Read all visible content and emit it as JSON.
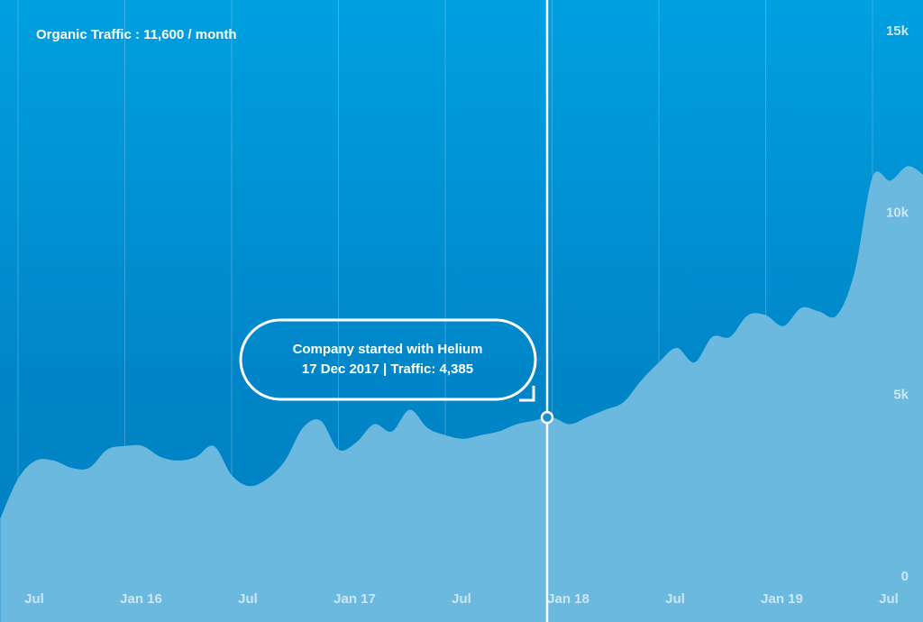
{
  "chart_data": {
    "type": "area",
    "title": "Organic Traffic : 11,600 / month",
    "annotation": [
      "Company started with Helium",
      "17 Dec 2017 | Traffic: 4,385"
    ],
    "categories": [
      null,
      "Jul",
      null,
      null,
      null,
      null,
      null,
      "Jan 16",
      null,
      null,
      null,
      null,
      null,
      "Jul",
      null,
      null,
      null,
      null,
      null,
      "Jan 17",
      null,
      null,
      null,
      null,
      null,
      "Jul",
      null,
      null,
      null,
      null,
      null,
      "Jan 18",
      null,
      null,
      null,
      null,
      null,
      "Jul",
      null,
      null,
      null,
      null,
      null,
      "Jan 19",
      null,
      null,
      null,
      null,
      null,
      "Jul",
      null,
      null,
      null
    ],
    "series": [
      {
        "name": "Organic Traffic",
        "color": "#6cb9e0",
        "values": [
          1600,
          2700,
          3200,
          3200,
          3000,
          3000,
          3500,
          3600,
          3600,
          3300,
          3200,
          3300,
          3600,
          2800,
          2500,
          2700,
          3200,
          4100,
          4300,
          3500,
          3700,
          4200,
          4000,
          4600,
          4100,
          3900,
          3800,
          3900,
          4000,
          4200,
          4300,
          4385,
          4200,
          4400,
          4600,
          4800,
          5400,
          5900,
          6300,
          5900,
          6600,
          6600,
          7200,
          7200,
          6900,
          7400,
          7300,
          7200,
          8400,
          11000,
          10900,
          11300,
          11000
        ]
      }
    ],
    "ylim": [
      0,
      15000
    ],
    "yticks": [
      0,
      {
        "value": 5000,
        "label": "5k"
      },
      {
        "value": 10000,
        "label": "10k"
      },
      {
        "value": 15000,
        "label": "15k"
      }
    ],
    "grid": true
  }
}
